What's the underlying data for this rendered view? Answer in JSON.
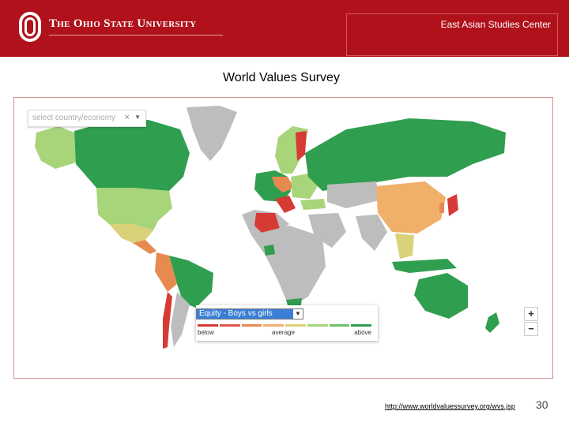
{
  "header": {
    "university": "The Ohio State University",
    "center": "East Asian Studies Center",
    "colors": {
      "banner": "#b0111b"
    }
  },
  "slide": {
    "title": "World Values Survey"
  },
  "map": {
    "country_select": {
      "placeholder": "select country/economy",
      "clear_glyph": "×",
      "arrow_glyph": "▼"
    },
    "legend": {
      "selected": "Equity - Boys vs girls",
      "arrow_glyph": "▼",
      "low_label": "below",
      "mid_label": "average",
      "high_label": "above",
      "colors": [
        "#d63a34",
        "#e0564a",
        "#e78a4f",
        "#f0b06a",
        "#d9d27a",
        "#a8d47a",
        "#6cc36a",
        "#2f9e4f"
      ]
    },
    "zoom": {
      "in": "+",
      "out": "−"
    },
    "colors": {
      "no_data": "#bdbdbd",
      "high": "#2f9e4f",
      "above_light": "#a8d47a",
      "mid": "#f0b06a",
      "orange": "#e78a4f",
      "yellow": "#d9d27a",
      "low": "#d63a34"
    }
  },
  "footer": {
    "source_url": "http://www.worldvaluessurvey.org/wvs.jsp",
    "page_number": "30"
  }
}
